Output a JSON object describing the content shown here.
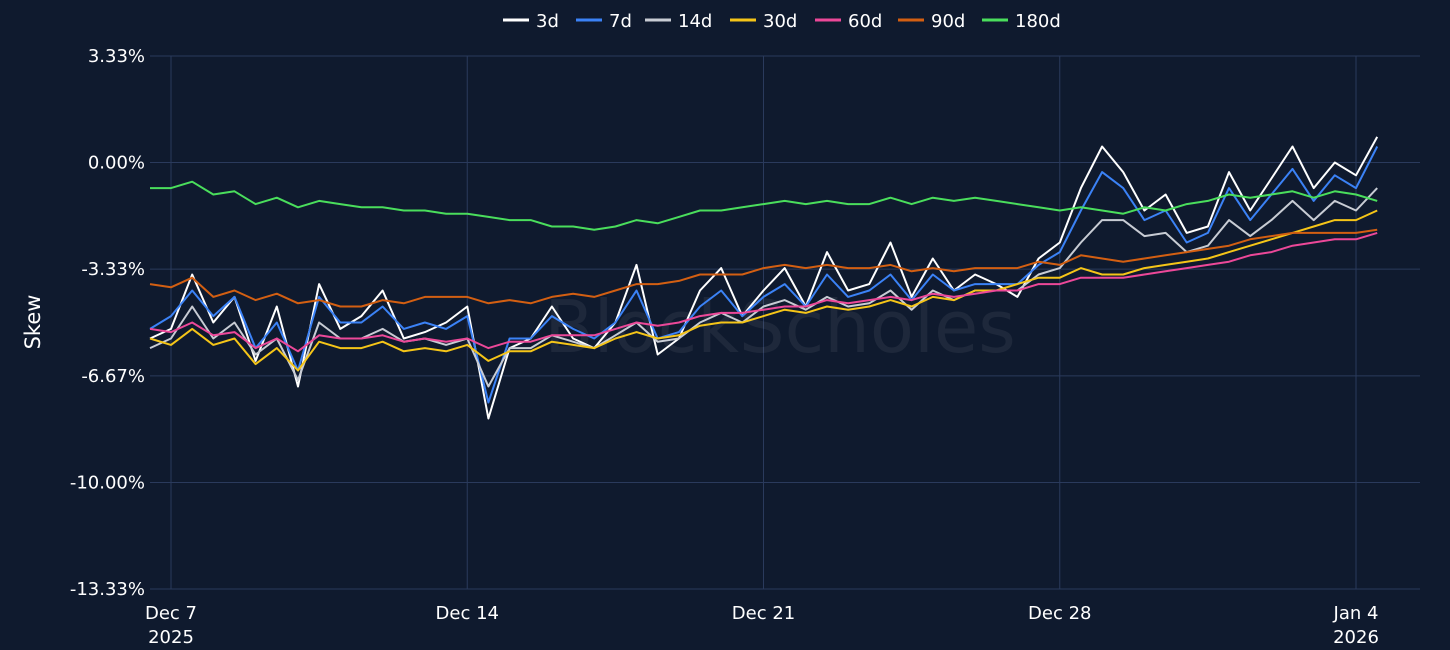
{
  "chart_data": {
    "type": "line",
    "title": "",
    "xlabel": "",
    "ylabel": "Skew",
    "watermark": "BlockScholes",
    "grid": true,
    "legend_position": "top-center",
    "ylim": [
      -13.33,
      3.33
    ],
    "y_ticks": [
      3.33,
      0.0,
      -3.33,
      -6.67,
      -10.0,
      -13.33
    ],
    "y_tick_labels": [
      "3.33%",
      "0.00%",
      "-3.33%",
      "-6.67%",
      "-10.00%",
      "-13.33%"
    ],
    "xlim": [
      -0.1,
      28.2
    ],
    "x_ticks": [
      {
        "x": 0,
        "label": "Dec 7",
        "sublabel": "2025"
      },
      {
        "x": 7,
        "label": "Dec 14",
        "sublabel": ""
      },
      {
        "x": 14,
        "label": "Dec 21",
        "sublabel": ""
      },
      {
        "x": 21,
        "label": "Dec 28",
        "sublabel": ""
      },
      {
        "x": 28,
        "label": "Jan 4",
        "sublabel": "2026"
      }
    ],
    "x_unit": "days since Dec 7 2025",
    "series": [
      {
        "name": "3d",
        "color": "#ffffff",
        "x": [
          -0.5,
          0,
          0.5,
          1,
          1.5,
          2,
          2.5,
          3,
          3.5,
          4,
          4.5,
          5,
          5.5,
          6,
          6.5,
          7,
          7.5,
          8,
          8.5,
          9,
          9.5,
          10,
          10.5,
          11,
          11.5,
          12,
          12.5,
          13,
          13.5,
          14,
          14.5,
          15,
          15.5,
          16,
          16.5,
          17,
          17.5,
          18,
          18.5,
          19,
          19.5,
          20,
          20.5,
          21,
          21.5,
          22,
          22.5,
          23,
          23.5,
          24,
          24.5,
          25,
          25.5,
          26,
          26.5,
          27,
          27.5,
          28,
          28.5
        ],
        "y": [
          -5.5,
          -5.2,
          -3.5,
          -5.0,
          -4.2,
          -6.2,
          -4.5,
          -7.0,
          -3.8,
          -5.2,
          -4.8,
          -4.0,
          -5.5,
          -5.3,
          -5.0,
          -4.5,
          -8.0,
          -5.8,
          -5.5,
          -4.5,
          -5.5,
          -5.8,
          -5.0,
          -3.2,
          -6.0,
          -5.5,
          -4.0,
          -3.3,
          -4.8,
          -4.0,
          -3.3,
          -4.5,
          -2.8,
          -4.0,
          -3.8,
          -2.5,
          -4.2,
          -3.0,
          -4.0,
          -3.5,
          -3.8,
          -4.2,
          -3.0,
          -2.5,
          -0.8,
          0.5,
          -0.3,
          -1.5,
          -1.0,
          -2.2,
          -2.0,
          -0.3,
          -1.5,
          -0.5,
          0.5,
          -0.8,
          0.0,
          -0.4,
          0.8
        ]
      },
      {
        "name": "7d",
        "color": "#3b82f6",
        "x": [
          -0.5,
          0,
          0.5,
          1,
          1.5,
          2,
          2.5,
          3,
          3.5,
          4,
          4.5,
          5,
          5.5,
          6,
          6.5,
          7,
          7.5,
          8,
          8.5,
          9,
          9.5,
          10,
          10.5,
          11,
          11.5,
          12,
          12.5,
          13,
          13.5,
          14,
          14.5,
          15,
          15.5,
          16,
          16.5,
          17,
          17.5,
          18,
          18.5,
          19,
          19.5,
          20,
          20.5,
          21,
          21.5,
          22,
          22.5,
          23,
          23.5,
          24,
          24.5,
          25,
          25.5,
          26,
          26.5,
          27,
          27.5,
          28,
          28.5
        ],
        "y": [
          -5.2,
          -4.8,
          -4.0,
          -4.8,
          -4.2,
          -5.8,
          -5.0,
          -6.5,
          -4.2,
          -5.0,
          -5.0,
          -4.5,
          -5.2,
          -5.0,
          -5.2,
          -4.8,
          -7.5,
          -5.5,
          -5.5,
          -4.8,
          -5.2,
          -5.5,
          -5.0,
          -4.0,
          -5.5,
          -5.3,
          -4.5,
          -4.0,
          -4.8,
          -4.2,
          -3.8,
          -4.5,
          -3.5,
          -4.2,
          -4.0,
          -3.5,
          -4.3,
          -3.5,
          -4.0,
          -3.8,
          -3.8,
          -3.8,
          -3.2,
          -2.8,
          -1.5,
          -0.3,
          -0.8,
          -1.8,
          -1.5,
          -2.5,
          -2.2,
          -0.8,
          -1.8,
          -1.0,
          -0.2,
          -1.2,
          -0.4,
          -0.8,
          0.5
        ]
      },
      {
        "name": "14d",
        "color": "#c8ccd4",
        "x": [
          -0.5,
          0,
          0.5,
          1,
          1.5,
          2,
          2.5,
          3,
          3.5,
          4,
          4.5,
          5,
          5.5,
          6,
          6.5,
          7,
          7.5,
          8,
          8.5,
          9,
          9.5,
          10,
          10.5,
          11,
          11.5,
          12,
          12.5,
          13,
          13.5,
          14,
          14.5,
          15,
          15.5,
          16,
          16.5,
          17,
          17.5,
          18,
          18.5,
          19,
          19.5,
          20,
          20.5,
          21,
          21.5,
          22,
          22.5,
          23,
          23.5,
          24,
          24.5,
          25,
          25.5,
          26,
          26.5,
          27,
          27.5,
          28,
          28.5
        ],
        "y": [
          -5.8,
          -5.5,
          -4.5,
          -5.5,
          -5.0,
          -6.0,
          -5.5,
          -6.8,
          -5.0,
          -5.5,
          -5.5,
          -5.2,
          -5.6,
          -5.5,
          -5.7,
          -5.5,
          -7.0,
          -5.8,
          -5.8,
          -5.4,
          -5.6,
          -5.8,
          -5.4,
          -5.0,
          -5.6,
          -5.5,
          -5.0,
          -4.7,
          -5.0,
          -4.5,
          -4.3,
          -4.6,
          -4.2,
          -4.5,
          -4.4,
          -4.0,
          -4.6,
          -4.0,
          -4.3,
          -4.0,
          -4.0,
          -4.0,
          -3.5,
          -3.3,
          -2.5,
          -1.8,
          -1.8,
          -2.3,
          -2.2,
          -2.8,
          -2.6,
          -1.8,
          -2.3,
          -1.8,
          -1.2,
          -1.8,
          -1.2,
          -1.5,
          -0.8
        ]
      },
      {
        "name": "30d",
        "color": "#f5c518",
        "x": [
          -0.5,
          0,
          0.5,
          1,
          1.5,
          2,
          2.5,
          3,
          3.5,
          4,
          4.5,
          5,
          5.5,
          6,
          6.5,
          7,
          7.5,
          8,
          8.5,
          9,
          9.5,
          10,
          10.5,
          11,
          11.5,
          12,
          12.5,
          13,
          13.5,
          14,
          14.5,
          15,
          15.5,
          16,
          16.5,
          17,
          17.5,
          18,
          18.5,
          19,
          19.5,
          20,
          20.5,
          21,
          21.5,
          22,
          22.5,
          23,
          23.5,
          24,
          24.5,
          25,
          25.5,
          26,
          26.5,
          27,
          27.5,
          28,
          28.5
        ],
        "y": [
          -5.5,
          -5.7,
          -5.2,
          -5.7,
          -5.5,
          -6.3,
          -5.8,
          -6.5,
          -5.6,
          -5.8,
          -5.8,
          -5.6,
          -5.9,
          -5.8,
          -5.9,
          -5.7,
          -6.2,
          -5.9,
          -5.9,
          -5.6,
          -5.7,
          -5.8,
          -5.5,
          -5.3,
          -5.5,
          -5.4,
          -5.1,
          -5.0,
          -5.0,
          -4.8,
          -4.6,
          -4.7,
          -4.5,
          -4.6,
          -4.5,
          -4.3,
          -4.5,
          -4.2,
          -4.3,
          -4.0,
          -4.0,
          -3.8,
          -3.6,
          -3.6,
          -3.3,
          -3.5,
          -3.5,
          -3.3,
          -3.2,
          -3.1,
          -3.0,
          -2.8,
          -2.6,
          -2.4,
          -2.2,
          -2.0,
          -1.8,
          -1.8,
          -1.5
        ]
      },
      {
        "name": "60d",
        "color": "#ec4899",
        "x": [
          -0.5,
          0,
          0.5,
          1,
          1.5,
          2,
          2.5,
          3,
          3.5,
          4,
          4.5,
          5,
          5.5,
          6,
          6.5,
          7,
          7.5,
          8,
          8.5,
          9,
          9.5,
          10,
          10.5,
          11,
          11.5,
          12,
          12.5,
          13,
          13.5,
          14,
          14.5,
          15,
          15.5,
          16,
          16.5,
          17,
          17.5,
          18,
          18.5,
          19,
          19.5,
          20,
          20.5,
          21,
          21.5,
          22,
          22.5,
          23,
          23.5,
          24,
          24.5,
          25,
          25.5,
          26,
          26.5,
          27,
          27.5,
          28,
          28.5
        ],
        "y": [
          -5.2,
          -5.3,
          -5.0,
          -5.4,
          -5.3,
          -5.8,
          -5.5,
          -5.9,
          -5.4,
          -5.5,
          -5.5,
          -5.4,
          -5.6,
          -5.5,
          -5.6,
          -5.5,
          -5.8,
          -5.6,
          -5.6,
          -5.4,
          -5.4,
          -5.4,
          -5.2,
          -5.0,
          -5.1,
          -5.0,
          -4.8,
          -4.7,
          -4.7,
          -4.6,
          -4.5,
          -4.5,
          -4.3,
          -4.4,
          -4.3,
          -4.2,
          -4.3,
          -4.1,
          -4.2,
          -4.1,
          -4.0,
          -4.0,
          -3.8,
          -3.8,
          -3.6,
          -3.6,
          -3.6,
          -3.5,
          -3.4,
          -3.3,
          -3.2,
          -3.1,
          -2.9,
          -2.8,
          -2.6,
          -2.5,
          -2.4,
          -2.4,
          -2.2
        ]
      },
      {
        "name": "90d",
        "color": "#d35f12",
        "x": [
          -0.5,
          0,
          0.5,
          1,
          1.5,
          2,
          2.5,
          3,
          3.5,
          4,
          4.5,
          5,
          5.5,
          6,
          6.5,
          7,
          7.5,
          8,
          8.5,
          9,
          9.5,
          10,
          10.5,
          11,
          11.5,
          12,
          12.5,
          13,
          13.5,
          14,
          14.5,
          15,
          15.5,
          16,
          16.5,
          17,
          17.5,
          18,
          18.5,
          19,
          19.5,
          20,
          20.5,
          21,
          21.5,
          22,
          22.5,
          23,
          23.5,
          24,
          24.5,
          25,
          25.5,
          26,
          26.5,
          27,
          27.5,
          28,
          28.5
        ],
        "y": [
          -3.8,
          -3.9,
          -3.6,
          -4.2,
          -4.0,
          -4.3,
          -4.1,
          -4.4,
          -4.3,
          -4.5,
          -4.5,
          -4.3,
          -4.4,
          -4.2,
          -4.2,
          -4.2,
          -4.4,
          -4.3,
          -4.4,
          -4.2,
          -4.1,
          -4.2,
          -4.0,
          -3.8,
          -3.8,
          -3.7,
          -3.5,
          -3.5,
          -3.5,
          -3.3,
          -3.2,
          -3.3,
          -3.2,
          -3.3,
          -3.3,
          -3.2,
          -3.4,
          -3.3,
          -3.4,
          -3.3,
          -3.3,
          -3.3,
          -3.1,
          -3.2,
          -2.9,
          -3.0,
          -3.1,
          -3.0,
          -2.9,
          -2.8,
          -2.7,
          -2.6,
          -2.4,
          -2.3,
          -2.2,
          -2.2,
          -2.2,
          -2.2,
          -2.1
        ]
      },
      {
        "name": "180d",
        "color": "#4ade5c",
        "x": [
          -0.5,
          0,
          0.5,
          1,
          1.5,
          2,
          2.5,
          3,
          3.5,
          4,
          4.5,
          5,
          5.5,
          6,
          6.5,
          7,
          7.5,
          8,
          8.5,
          9,
          9.5,
          10,
          10.5,
          11,
          11.5,
          12,
          12.5,
          13,
          13.5,
          14,
          14.5,
          15,
          15.5,
          16,
          16.5,
          17,
          17.5,
          18,
          18.5,
          19,
          19.5,
          20,
          20.5,
          21,
          21.5,
          22,
          22.5,
          23,
          23.5,
          24,
          24.5,
          25,
          25.5,
          26,
          26.5,
          27,
          27.5,
          28,
          28.5
        ],
        "y": [
          -0.8,
          -0.8,
          -0.6,
          -1.0,
          -0.9,
          -1.3,
          -1.1,
          -1.4,
          -1.2,
          -1.3,
          -1.4,
          -1.4,
          -1.5,
          -1.5,
          -1.6,
          -1.6,
          -1.7,
          -1.8,
          -1.8,
          -2.0,
          -2.0,
          -2.1,
          -2.0,
          -1.8,
          -1.9,
          -1.7,
          -1.5,
          -1.5,
          -1.4,
          -1.3,
          -1.2,
          -1.3,
          -1.2,
          -1.3,
          -1.3,
          -1.1,
          -1.3,
          -1.1,
          -1.2,
          -1.1,
          -1.2,
          -1.3,
          -1.4,
          -1.5,
          -1.4,
          -1.5,
          -1.6,
          -1.4,
          -1.5,
          -1.3,
          -1.2,
          -1.0,
          -1.1,
          -1.0,
          -0.9,
          -1.1,
          -0.9,
          -1.0,
          -1.2
        ]
      }
    ]
  }
}
